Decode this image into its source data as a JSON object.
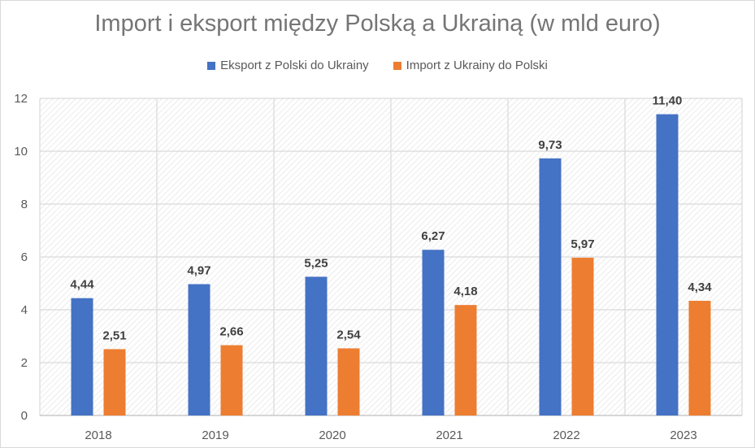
{
  "chart_data": {
    "type": "bar",
    "title": "Import i eksport między Polską a Ukrainą (w mld euro)",
    "categories": [
      "2018",
      "2019",
      "2020",
      "2021",
      "2022",
      "2023"
    ],
    "series": [
      {
        "name": "Eksport z Polski do Ukrainy",
        "color": "#4472c4",
        "values": [
          4.44,
          4.97,
          5.25,
          6.27,
          9.73,
          11.4
        ],
        "labels": [
          "4,44",
          "4,97",
          "5,25",
          "6,27",
          "9,73",
          "11,40"
        ]
      },
      {
        "name": "Import z Ukrainy do Polski",
        "color": "#ed7d31",
        "values": [
          2.51,
          2.66,
          2.54,
          4.18,
          5.97,
          4.34
        ],
        "labels": [
          "2,51",
          "2,66",
          "2,54",
          "4,18",
          "5,97",
          "4,34"
        ]
      }
    ],
    "ylim": [
      0,
      12
    ],
    "yticks": [
      "0",
      "2",
      "4",
      "6",
      "8",
      "10",
      "12"
    ],
    "grid": true,
    "legend_position": "top"
  }
}
